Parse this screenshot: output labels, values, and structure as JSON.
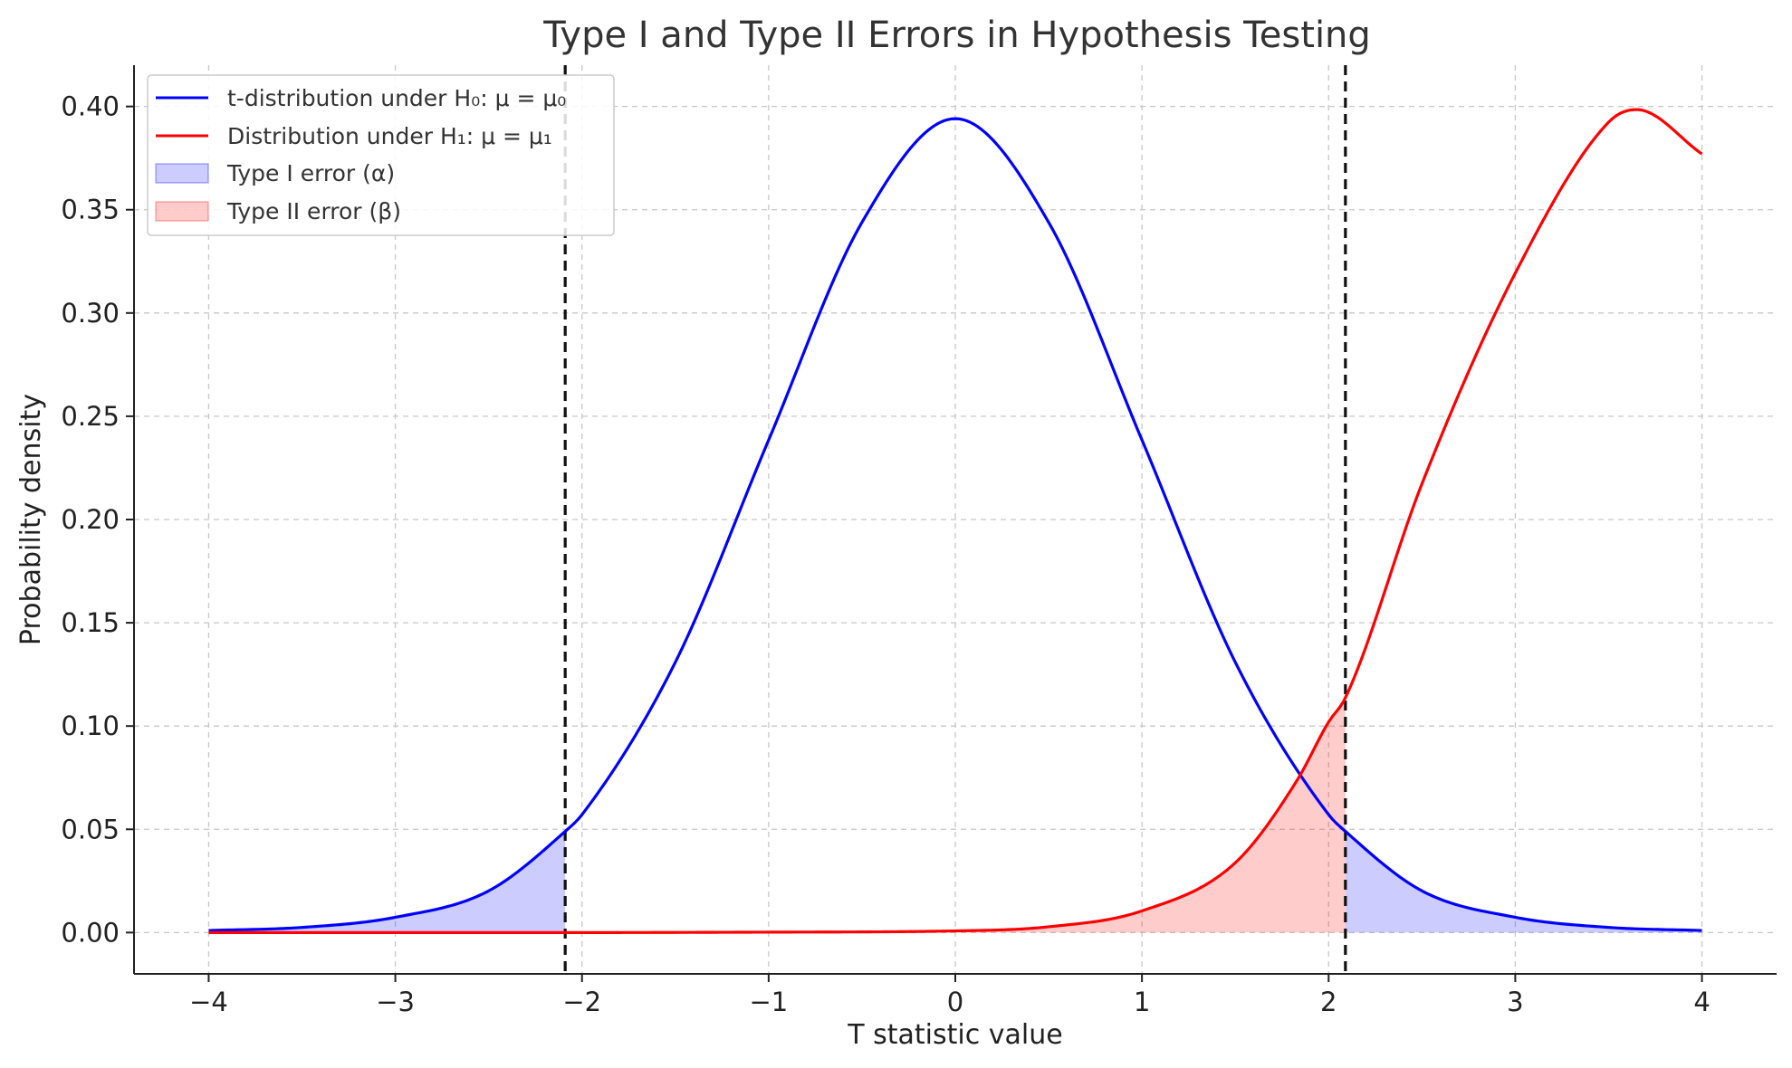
{
  "chart_data": {
    "type": "line",
    "title": "Type I and Type II Errors in Hypothesis Testing",
    "xlabel": "T statistic value",
    "ylabel": "Probability density",
    "xlim": [
      -4.4,
      4.4
    ],
    "ylim": [
      -0.02,
      0.42
    ],
    "xticks": [
      -4,
      -3,
      -2,
      -1,
      0,
      1,
      2,
      3,
      4
    ],
    "xtick_labels": [
      "−4",
      "−3",
      "−2",
      "−1",
      "0",
      "1",
      "2",
      "3",
      "4"
    ],
    "yticks": [
      0.0,
      0.05,
      0.1,
      0.15,
      0.2,
      0.25,
      0.3,
      0.35,
      0.4
    ],
    "ytick_labels": [
      "0.00",
      "0.05",
      "0.10",
      "0.15",
      "0.20",
      "0.25",
      "0.30",
      "0.35",
      "0.40"
    ],
    "grid": true,
    "legend_position": "top-left",
    "critical_values": [
      -2.09,
      2.09
    ],
    "series": [
      {
        "name": "t-distribution under H₀: μ = μ₀",
        "color": "#0000ff",
        "x": [
          -4,
          -3.5,
          -3,
          -2.5,
          -2.09,
          -2,
          -1.5,
          -1,
          -0.5,
          0,
          0.5,
          1,
          1.5,
          2,
          2.09,
          2.5,
          3,
          3.5,
          4
        ],
        "y": [
          0.001,
          0.0025,
          0.0074,
          0.0202,
          0.049,
          0.0571,
          0.1309,
          0.2385,
          0.3439,
          0.3941,
          0.3439,
          0.2385,
          0.1309,
          0.0571,
          0.049,
          0.0202,
          0.0074,
          0.0025,
          0.001
        ]
      },
      {
        "name": "Distribution under H₁: μ = μ₁",
        "color": "#ff0000",
        "x": [
          -4,
          -2,
          -1,
          0,
          0.5,
          1,
          1.5,
          1.83,
          2,
          2.09,
          2.5,
          3,
          3.5,
          3.65,
          4
        ],
        "y": [
          0,
          0,
          0.0002,
          0.0008,
          0.0028,
          0.0105,
          0.0338,
          0.0736,
          0.102,
          0.1137,
          0.2173,
          0.3193,
          0.3924,
          0.3985,
          0.377
        ]
      }
    ],
    "shaded_regions": [
      {
        "name": "Type I error (α)",
        "color": "#0000ff",
        "opacity": 0.2,
        "ranges": [
          [
            -4,
            -2.09
          ],
          [
            2.09,
            4
          ]
        ],
        "under": "t-distribution under H₀: μ = μ₀"
      },
      {
        "name": "Type II error (β)",
        "color": "#ff0000",
        "opacity": 0.2,
        "ranges": [
          [
            -4,
            2.09
          ]
        ],
        "under": "Distribution under H₁: μ = μ₁"
      }
    ]
  }
}
